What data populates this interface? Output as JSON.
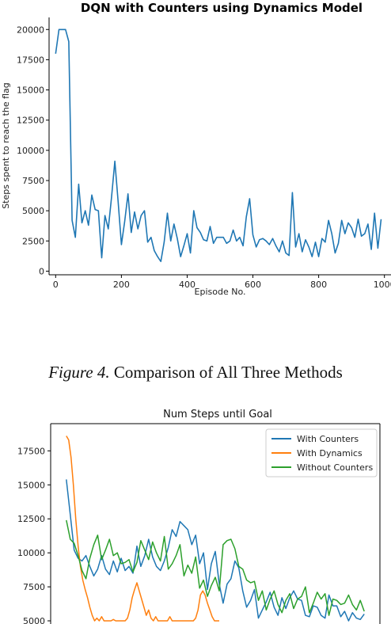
{
  "caption": {
    "label": "Figure 4.",
    "text": "Comparison of All Three Methods"
  },
  "chart_data": [
    {
      "type": "line",
      "title": "DQN with Counters using Dynamics Model",
      "xlabel": "Episode No.",
      "ylabel": "Steps spent to reach the flag",
      "xlim": [
        -20,
        1020
      ],
      "ylim": [
        -300,
        21000
      ],
      "xticks": [
        0,
        200,
        400,
        600,
        800,
        1000
      ],
      "yticks": [
        0,
        2500,
        5000,
        7500,
        10000,
        12500,
        15000,
        17500,
        20000
      ],
      "grid": false,
      "colors": {
        "line": "#1f77b4"
      },
      "series": [
        {
          "x": [
            0,
            10,
            20,
            30,
            40,
            50,
            60,
            70,
            80,
            90,
            100,
            110,
            120,
            130,
            140,
            150,
            160,
            170,
            180,
            190,
            200,
            210,
            220,
            230,
            240,
            250,
            260,
            270,
            280,
            290,
            300,
            310,
            320,
            330,
            340,
            350,
            360,
            370,
            380,
            390,
            400,
            410,
            420,
            430,
            440,
            450,
            460,
            470,
            480,
            490,
            500,
            510,
            520,
            530,
            540,
            550,
            560,
            570,
            580,
            590,
            600,
            610,
            620,
            630,
            640,
            650,
            660,
            670,
            680,
            690,
            700,
            710,
            720,
            730,
            740,
            750,
            760,
            770,
            780,
            790,
            800,
            810,
            820,
            830,
            840,
            850,
            860,
            870,
            880,
            890,
            900,
            910,
            920,
            930,
            940,
            950,
            960,
            970,
            980,
            990
          ],
          "y": [
            18000,
            20000,
            20000,
            20000,
            19000,
            4200,
            2800,
            7200,
            4000,
            5000,
            3800,
            6300,
            5100,
            5000,
            1100,
            4600,
            3500,
            6100,
            9100,
            5800,
            2200,
            4100,
            6400,
            3200,
            4900,
            3500,
            4600,
            5000,
            2400,
            2800,
            1700,
            1200,
            800,
            2400,
            4800,
            2500,
            3900,
            2700,
            1200,
            2100,
            3100,
            1500,
            5000,
            3600,
            3200,
            2600,
            2500,
            3700,
            2300,
            2800,
            2800,
            2800,
            2300,
            2500,
            3400,
            2500,
            2800,
            2100,
            4500,
            6000,
            3000,
            2000,
            2600,
            2700,
            2500,
            2200,
            2700,
            2100,
            1600,
            2500,
            1500,
            1300,
            6500,
            2000,
            3100,
            1600,
            2600,
            2000,
            1200,
            2400,
            1200,
            2700,
            2400,
            4200,
            3100,
            1500,
            2300,
            4200,
            3100,
            4000,
            3600,
            2800,
            4300,
            2900,
            3100,
            3900,
            1800,
            4800,
            1900,
            4300
          ]
        }
      ]
    },
    {
      "type": "line",
      "title": "Num Steps until Goal",
      "xlabel": "",
      "ylabel": "",
      "ylim": [
        5000,
        19500
      ],
      "yticks": [
        5000,
        7500,
        10000,
        12500,
        15000,
        17500
      ],
      "xlim": [
        -20,
        400
      ],
      "legend_position": "top-right",
      "grid": false,
      "series": [
        {
          "name": "With Counters",
          "color": "#1f77b4",
          "x": [
            0,
            5,
            10,
            15,
            20,
            25,
            30,
            35,
            40,
            45,
            50,
            55,
            60,
            65,
            70,
            75,
            80,
            85,
            90,
            95,
            100,
            105,
            110,
            115,
            120,
            125,
            130,
            135,
            140,
            145,
            150,
            155,
            160,
            165,
            170,
            175,
            180,
            185,
            190,
            195,
            200,
            205,
            210,
            215,
            220,
            225,
            230,
            235,
            240,
            245,
            250,
            255,
            260,
            265,
            270,
            275,
            280,
            285,
            290,
            295,
            300,
            305,
            310,
            315,
            320,
            325,
            330,
            335,
            340,
            345,
            350,
            355,
            360,
            365,
            370,
            375,
            380
          ],
          "y": [
            15400,
            12800,
            10200,
            9600,
            9400,
            9800,
            9000,
            8300,
            8800,
            9800,
            8800,
            8400,
            9400,
            8600,
            9600,
            8700,
            9000,
            8500,
            10500,
            9000,
            9800,
            11000,
            9700,
            9000,
            8700,
            9400,
            10400,
            11700,
            11200,
            12300,
            12000,
            11700,
            10600,
            11300,
            9200,
            10000,
            7300,
            9200,
            10100,
            7700,
            6300,
            7700,
            8100,
            9400,
            8900,
            7200,
            6000,
            6500,
            7300,
            5200,
            5800,
            6400,
            7100,
            6000,
            5400,
            6700,
            5900,
            6700,
            7200,
            6600,
            6500,
            5400,
            5300,
            6100,
            6000,
            5400,
            5200,
            6900,
            6100,
            6100,
            5300,
            5700,
            5000,
            5600,
            5200,
            5100,
            5500
          ]
        },
        {
          "name": "With Dynamics",
          "color": "#ff7f0e",
          "x": [
            0,
            3,
            6,
            9,
            12,
            15,
            18,
            21,
            24,
            27,
            30,
            33,
            36,
            39,
            42,
            45,
            48,
            51,
            54,
            57,
            60,
            63,
            66,
            69,
            72,
            75,
            78,
            81,
            84,
            87,
            90,
            93,
            96,
            99,
            102,
            105,
            108,
            111,
            114,
            117,
            120,
            123,
            126,
            129,
            132,
            135,
            138,
            141,
            144,
            147,
            150,
            153,
            156,
            159,
            162,
            165,
            168,
            171,
            174,
            177,
            180,
            183,
            186,
            189,
            192,
            195
          ],
          "y": [
            18600,
            18300,
            17000,
            15000,
            12500,
            10500,
            9000,
            8000,
            7300,
            6700,
            6000,
            5400,
            5000,
            5200,
            5000,
            5300,
            5000,
            5000,
            5000,
            5000,
            5100,
            5000,
            5000,
            5000,
            5000,
            5000,
            5200,
            5800,
            6700,
            7300,
            7800,
            7200,
            6600,
            6000,
            5400,
            5800,
            5200,
            5000,
            5300,
            5000,
            5000,
            5000,
            5000,
            5000,
            5300,
            5000,
            5000,
            5000,
            5000,
            5000,
            5000,
            5000,
            5000,
            5000,
            5000,
            5200,
            5800,
            6900,
            7200,
            6900,
            6300,
            5800,
            5300,
            5000,
            5000,
            5000
          ]
        },
        {
          "name": "Without Counters",
          "color": "#2ca02c",
          "x": [
            0,
            5,
            10,
            15,
            20,
            25,
            30,
            35,
            40,
            45,
            50,
            55,
            60,
            65,
            70,
            75,
            80,
            85,
            90,
            95,
            100,
            105,
            110,
            115,
            120,
            125,
            130,
            135,
            140,
            145,
            150,
            155,
            160,
            165,
            170,
            175,
            180,
            185,
            190,
            195,
            200,
            205,
            210,
            215,
            220,
            225,
            230,
            235,
            240,
            245,
            250,
            255,
            260,
            265,
            270,
            275,
            280,
            285,
            290,
            295,
            300,
            305,
            310,
            315,
            320,
            325,
            330,
            335,
            340,
            345,
            350,
            355,
            360,
            365,
            370,
            375,
            380
          ],
          "y": [
            12400,
            11000,
            10700,
            9800,
            8700,
            8100,
            9600,
            10600,
            11300,
            9500,
            10200,
            11000,
            9800,
            10000,
            9200,
            9300,
            9500,
            8600,
            9300,
            10900,
            10200,
            9500,
            10800,
            10000,
            9400,
            11200,
            8800,
            9200,
            9800,
            10600,
            8300,
            9100,
            8500,
            9700,
            7400,
            8000,
            6800,
            7600,
            8200,
            7200,
            10600,
            10900,
            11000,
            10300,
            9000,
            8800,
            8000,
            7800,
            7900,
            6500,
            7200,
            5800,
            6600,
            7200,
            6200,
            5600,
            6500,
            7000,
            5900,
            6600,
            6800,
            7500,
            5600,
            6300,
            7100,
            6600,
            7000,
            5400,
            6600,
            6500,
            6200,
            6300,
            6900,
            6200,
            5800,
            6500,
            5700
          ]
        }
      ]
    }
  ]
}
